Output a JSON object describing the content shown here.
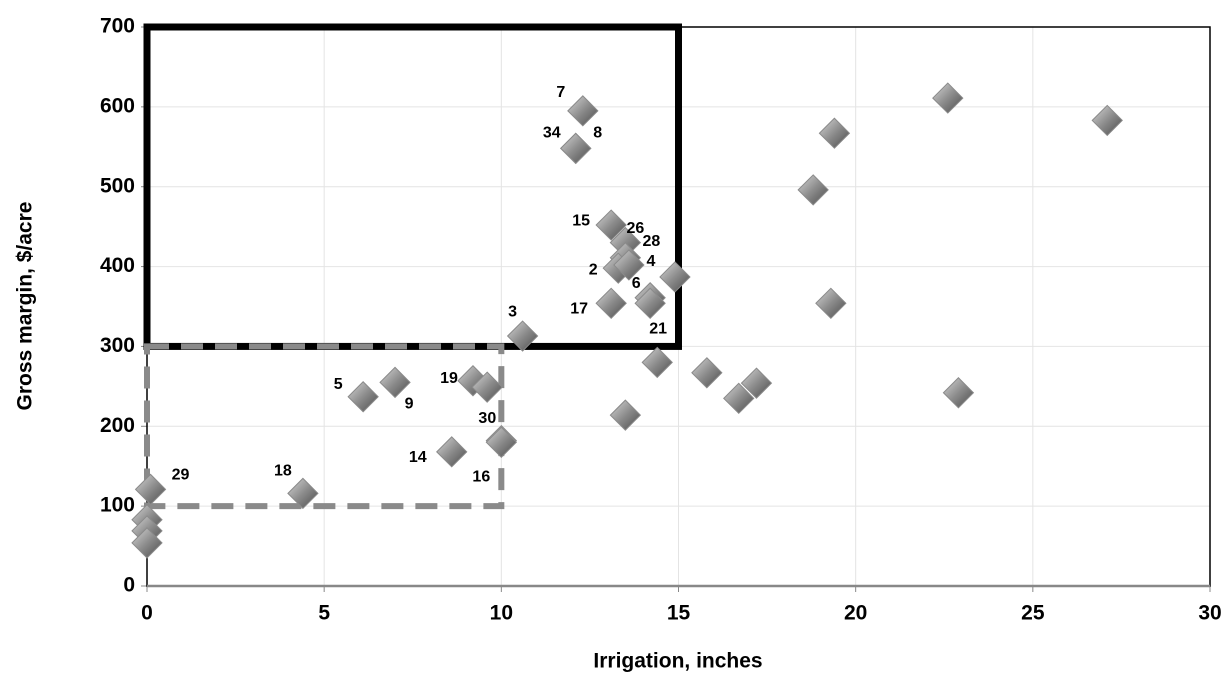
{
  "chart_data": {
    "type": "scatter",
    "x_label": "Irrigation, inches",
    "y_label": "Gross margin, $/acre",
    "xlim": [
      0,
      30
    ],
    "ylim": [
      0,
      700
    ],
    "xticks": [
      0,
      5,
      10,
      15,
      20,
      25,
      30
    ],
    "yticks": [
      0,
      100,
      200,
      300,
      400,
      500,
      600,
      700
    ],
    "grid": true,
    "color": "#8a8a8a",
    "x": [
      12.3,
      12.1,
      12.1,
      13.1,
      13.5,
      13.5,
      13.3,
      13.6,
      14.9,
      14.2,
      14.2,
      13.1,
      10.6,
      9.2,
      9.6,
      10,
      10,
      8.6,
      4.4,
      6.1,
      7.0,
      0.1,
      0,
      0,
      0,
      14.4,
      13.5,
      15.8,
      16.7,
      17.2,
      18.8,
      19.4,
      19.3,
      22.6,
      27.1,
      22.9
    ],
    "y": [
      595,
      548,
      548,
      452,
      430,
      411,
      398,
      402,
      387,
      361,
      354,
      354,
      313,
      257,
      249,
      182,
      180,
      168,
      116,
      237,
      255,
      121,
      83,
      69,
      54,
      280,
      214,
      267,
      235,
      254,
      496,
      567,
      354,
      611,
      583,
      242
    ],
    "point_labels": [
      "7",
      "34",
      "8",
      "15",
      "26",
      "28",
      "2",
      "4",
      null,
      "6",
      "21",
      "17",
      "3",
      "19",
      null,
      "30",
      "16",
      "14",
      "18",
      "5",
      "9",
      "29",
      null,
      null,
      null,
      null,
      null,
      null,
      null,
      null,
      null,
      null,
      null,
      null,
      null,
      null
    ],
    "regions": [
      {
        "xlim": [
          0,
          15
        ],
        "ylim": [
          300,
          700
        ],
        "style": "solid"
      },
      {
        "xlim": [
          0,
          10
        ],
        "ylim": [
          100,
          300
        ],
        "style": "dashed"
      }
    ]
  }
}
